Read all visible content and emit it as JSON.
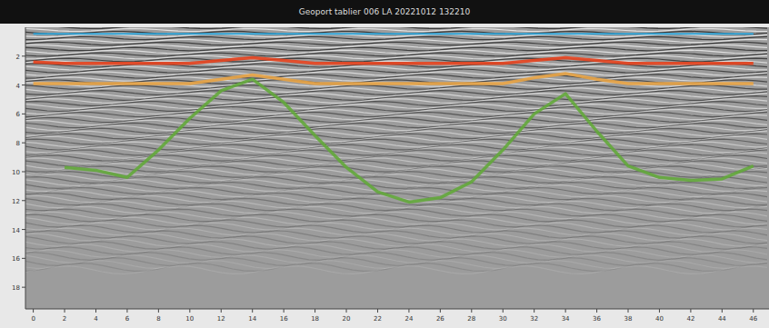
{
  "chart_data": {
    "type": "line",
    "title": "Geoport tablier 006 LA 20221012 132210",
    "x": [
      0,
      2,
      4,
      6,
      8,
      10,
      12,
      14,
      16,
      18,
      20,
      22,
      24,
      26,
      28,
      30,
      32,
      34,
      36,
      38,
      40,
      42,
      44,
      46
    ],
    "xlim": [
      -0.5,
      47
    ],
    "xticks": [
      0,
      2,
      4,
      6,
      8,
      10,
      12,
      14,
      16,
      18,
      20,
      22,
      24,
      26,
      28,
      30,
      32,
      34,
      36,
      38,
      40,
      42,
      44,
      46
    ],
    "ylim": [
      0,
      19.5
    ],
    "yticks": [
      2,
      4,
      6,
      8,
      10,
      12,
      14,
      16,
      18
    ],
    "grid": false,
    "series": [
      {
        "color": "#2aa7df",
        "values": [
          0.45,
          0.45,
          0.45,
          0.45,
          0.45,
          0.45,
          0.45,
          0.45,
          0.45,
          0.45,
          0.45,
          0.45,
          0.45,
          0.45,
          0.45,
          0.45,
          0.45,
          0.45,
          0.45,
          0.45,
          0.45,
          0.45,
          0.45,
          0.45
        ]
      },
      {
        "color": "#e5411d",
        "values": [
          2.4,
          2.5,
          2.5,
          2.5,
          2.5,
          2.5,
          2.3,
          2.1,
          2.3,
          2.5,
          2.5,
          2.5,
          2.5,
          2.5,
          2.5,
          2.5,
          2.3,
          2.1,
          2.3,
          2.5,
          2.5,
          2.5,
          2.5,
          2.5
        ]
      },
      {
        "color": "#e9a445",
        "values": [
          3.9,
          3.9,
          3.9,
          3.9,
          3.9,
          3.9,
          3.6,
          3.3,
          3.6,
          3.9,
          3.9,
          3.9,
          3.9,
          3.9,
          3.9,
          3.9,
          3.5,
          3.2,
          3.6,
          3.9,
          3.9,
          3.9,
          3.9,
          3.9
        ]
      },
      {
        "color": "#63a93b",
        "values": [
          null,
          9.7,
          9.9,
          10.4,
          8.5,
          6.3,
          4.4,
          3.6,
          5.2,
          7.5,
          9.7,
          11.4,
          12.1,
          11.8,
          10.7,
          8.5,
          6.0,
          4.6,
          7.2,
          9.6,
          10.4,
          10.6,
          10.5,
          9.6
        ]
      }
    ]
  }
}
